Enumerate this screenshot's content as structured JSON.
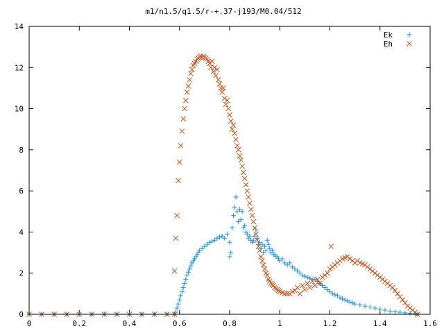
{
  "chart_data": {
    "type": "scatter",
    "title": "m1/n1.5/q1.5/r-+.37-j193/M0.04/512",
    "xlabel": "",
    "ylabel": "",
    "xlim": [
      0,
      1.6
    ],
    "ylim": [
      0,
      14
    ],
    "grid": false,
    "legend_position": "top-right",
    "x_ticks": [
      0,
      0.2,
      0.4,
      0.6,
      0.8,
      1.0,
      1.2,
      1.4,
      1.6
    ],
    "x_tick_labels": [
      "0",
      "0.2",
      "0.4",
      "0.6",
      "0.8",
      "1",
      "1.2",
      "1.4",
      "1.6"
    ],
    "y_ticks": [
      0,
      2,
      4,
      6,
      8,
      10,
      12,
      14
    ],
    "y_tick_labels": [
      "0",
      "2",
      "4",
      "6",
      "8",
      "10",
      "12",
      "14"
    ],
    "series": [
      {
        "name": "Ek",
        "marker": "plus",
        "color": "#1f8fd8",
        "points": [
          [
            0.0,
            0
          ],
          [
            0.05,
            0
          ],
          [
            0.1,
            0
          ],
          [
            0.15,
            0
          ],
          [
            0.2,
            0
          ],
          [
            0.25,
            0
          ],
          [
            0.3,
            0
          ],
          [
            0.35,
            0
          ],
          [
            0.4,
            0
          ],
          [
            0.45,
            0
          ],
          [
            0.5,
            0
          ],
          [
            0.55,
            0
          ],
          [
            0.58,
            0
          ],
          [
            0.585,
            0.1
          ],
          [
            0.59,
            0.3
          ],
          [
            0.595,
            0.5
          ],
          [
            0.6,
            0.7
          ],
          [
            0.605,
            0.9
          ],
          [
            0.61,
            1.1
          ],
          [
            0.615,
            1.3
          ],
          [
            0.62,
            1.5
          ],
          [
            0.625,
            1.7
          ],
          [
            0.63,
            1.9
          ],
          [
            0.635,
            2.05
          ],
          [
            0.64,
            2.2
          ],
          [
            0.645,
            2.35
          ],
          [
            0.65,
            2.5
          ],
          [
            0.655,
            2.6
          ],
          [
            0.66,
            2.7
          ],
          [
            0.665,
            2.8
          ],
          [
            0.67,
            2.9
          ],
          [
            0.675,
            3.0
          ],
          [
            0.68,
            3.1
          ],
          [
            0.69,
            3.2
          ],
          [
            0.7,
            3.3
          ],
          [
            0.71,
            3.4
          ],
          [
            0.72,
            3.5
          ],
          [
            0.73,
            3.55
          ],
          [
            0.74,
            3.6
          ],
          [
            0.75,
            3.7
          ],
          [
            0.76,
            3.75
          ],
          [
            0.77,
            3.8
          ],
          [
            0.78,
            3.7
          ],
          [
            0.79,
            3.9
          ],
          [
            0.8,
            3.5
          ],
          [
            0.8,
            2.8
          ],
          [
            0.805,
            3.0
          ],
          [
            0.81,
            4.2
          ],
          [
            0.815,
            4.8
          ],
          [
            0.82,
            5.2
          ],
          [
            0.825,
            5.7
          ],
          [
            0.83,
            5.0
          ],
          [
            0.835,
            4.5
          ],
          [
            0.84,
            5.1
          ],
          [
            0.845,
            4.6
          ],
          [
            0.85,
            5.0
          ],
          [
            0.855,
            4.2
          ],
          [
            0.86,
            4.3
          ],
          [
            0.865,
            4.0
          ],
          [
            0.87,
            3.9
          ],
          [
            0.875,
            3.7
          ],
          [
            0.88,
            3.8
          ],
          [
            0.885,
            3.6
          ],
          [
            0.89,
            3.5
          ],
          [
            0.895,
            3.6
          ],
          [
            0.9,
            3.8
          ],
          [
            0.905,
            4.1
          ],
          [
            0.91,
            3.7
          ],
          [
            0.915,
            3.4
          ],
          [
            0.92,
            3.5
          ],
          [
            0.925,
            3.2
          ],
          [
            0.93,
            3.4
          ],
          [
            0.935,
            3.0
          ],
          [
            0.94,
            3.3
          ],
          [
            0.945,
            3.1
          ],
          [
            0.95,
            3.6
          ],
          [
            0.955,
            3.4
          ],
          [
            0.96,
            3.2
          ],
          [
            0.965,
            3.0
          ],
          [
            0.97,
            3.1
          ],
          [
            0.975,
            2.9
          ],
          [
            0.98,
            2.9
          ],
          [
            0.985,
            2.8
          ],
          [
            0.99,
            2.8
          ],
          [
            0.995,
            2.7
          ],
          [
            1.0,
            2.6
          ],
          [
            1.01,
            2.7
          ],
          [
            1.02,
            2.5
          ],
          [
            1.03,
            2.4
          ],
          [
            1.04,
            2.5
          ],
          [
            1.05,
            2.3
          ],
          [
            1.06,
            2.2
          ],
          [
            1.07,
            2.1
          ],
          [
            1.08,
            2.0
          ],
          [
            1.09,
            1.9
          ],
          [
            1.1,
            1.85
          ],
          [
            1.11,
            1.8
          ],
          [
            1.12,
            1.75
          ],
          [
            1.13,
            1.7
          ],
          [
            1.14,
            1.7
          ],
          [
            1.15,
            1.6
          ],
          [
            1.16,
            1.5
          ],
          [
            1.17,
            1.4
          ],
          [
            1.18,
            1.3
          ],
          [
            1.19,
            1.2
          ],
          [
            1.2,
            1.1
          ],
          [
            1.21,
            1.0
          ],
          [
            1.22,
            0.95
          ],
          [
            1.23,
            0.9
          ],
          [
            1.24,
            0.8
          ],
          [
            1.25,
            0.75
          ],
          [
            1.26,
            0.7
          ],
          [
            1.27,
            0.65
          ],
          [
            1.28,
            0.6
          ],
          [
            1.29,
            0.55
          ],
          [
            1.3,
            0.5
          ],
          [
            1.32,
            0.45
          ],
          [
            1.34,
            0.4
          ],
          [
            1.36,
            0.35
          ],
          [
            1.38,
            0.3
          ],
          [
            1.4,
            0.25
          ],
          [
            1.42,
            0.2
          ],
          [
            1.44,
            0.15
          ],
          [
            1.46,
            0.12
          ],
          [
            1.48,
            0.1
          ],
          [
            1.5,
            0.07
          ],
          [
            1.52,
            0.05
          ],
          [
            1.54,
            0.02
          ],
          [
            1.55,
            0
          ]
        ]
      },
      {
        "name": "Eh",
        "marker": "cross",
        "color": "#c0541f",
        "points": [
          [
            0.0,
            0
          ],
          [
            0.05,
            0
          ],
          [
            0.1,
            0
          ],
          [
            0.15,
            0
          ],
          [
            0.2,
            0
          ],
          [
            0.25,
            0
          ],
          [
            0.3,
            0
          ],
          [
            0.35,
            0
          ],
          [
            0.4,
            0
          ],
          [
            0.45,
            0
          ],
          [
            0.5,
            0
          ],
          [
            0.55,
            0
          ],
          [
            0.58,
            0
          ],
          [
            0.58,
            2.1
          ],
          [
            0.585,
            3.7
          ],
          [
            0.59,
            4.8
          ],
          [
            0.595,
            6.5
          ],
          [
            0.6,
            7.4
          ],
          [
            0.605,
            8.2
          ],
          [
            0.61,
            8.9
          ],
          [
            0.615,
            9.5
          ],
          [
            0.62,
            10.0
          ],
          [
            0.625,
            10.4
          ],
          [
            0.63,
            10.8
          ],
          [
            0.635,
            11.1
          ],
          [
            0.64,
            11.4
          ],
          [
            0.645,
            11.7
          ],
          [
            0.65,
            11.9
          ],
          [
            0.655,
            12.1
          ],
          [
            0.66,
            12.2
          ],
          [
            0.665,
            12.3
          ],
          [
            0.67,
            12.4
          ],
          [
            0.675,
            12.45
          ],
          [
            0.68,
            12.5
          ],
          [
            0.685,
            12.55
          ],
          [
            0.69,
            12.5
          ],
          [
            0.695,
            12.55
          ],
          [
            0.7,
            12.5
          ],
          [
            0.705,
            12.45
          ],
          [
            0.71,
            12.4
          ],
          [
            0.715,
            12.3
          ],
          [
            0.72,
            12.2
          ],
          [
            0.725,
            12.0
          ],
          [
            0.73,
            12.3
          ],
          [
            0.735,
            11.8
          ],
          [
            0.74,
            12.0
          ],
          [
            0.745,
            11.6
          ],
          [
            0.75,
            11.9
          ],
          [
            0.755,
            11.4
          ],
          [
            0.76,
            11.2
          ],
          [
            0.765,
            11.0
          ],
          [
            0.77,
            10.8
          ],
          [
            0.775,
            11.0
          ],
          [
            0.78,
            10.5
          ],
          [
            0.785,
            10.2
          ],
          [
            0.79,
            10.4
          ],
          [
            0.795,
            10.0
          ],
          [
            0.8,
            9.7
          ],
          [
            0.805,
            9.4
          ],
          [
            0.81,
            9.0
          ],
          [
            0.815,
            9.2
          ],
          [
            0.82,
            8.8
          ],
          [
            0.825,
            8.5
          ],
          [
            0.83,
            8.2
          ],
          [
            0.835,
            8.0
          ],
          [
            0.84,
            7.7
          ],
          [
            0.845,
            7.5
          ],
          [
            0.85,
            7.2
          ],
          [
            0.855,
            6.9
          ],
          [
            0.86,
            6.6
          ],
          [
            0.865,
            6.3
          ],
          [
            0.87,
            6.0
          ],
          [
            0.875,
            5.7
          ],
          [
            0.88,
            5.4
          ],
          [
            0.885,
            5.1
          ],
          [
            0.89,
            4.8
          ],
          [
            0.895,
            4.5
          ],
          [
            0.9,
            4.2
          ],
          [
            0.905,
            3.9
          ],
          [
            0.91,
            3.6
          ],
          [
            0.915,
            3.3
          ],
          [
            0.92,
            3.1
          ],
          [
            0.925,
            2.8
          ],
          [
            0.93,
            2.6
          ],
          [
            0.935,
            2.4
          ],
          [
            0.94,
            2.2
          ],
          [
            0.945,
            2.0
          ],
          [
            0.95,
            1.9
          ],
          [
            0.955,
            1.7
          ],
          [
            0.96,
            1.6
          ],
          [
            0.965,
            1.5
          ],
          [
            0.97,
            1.45
          ],
          [
            0.975,
            1.4
          ],
          [
            0.98,
            1.3
          ],
          [
            0.985,
            1.25
          ],
          [
            0.99,
            1.2
          ],
          [
            0.995,
            1.15
          ],
          [
            1.0,
            1.1
          ],
          [
            1.01,
            1.05
          ],
          [
            1.02,
            1.0
          ],
          [
            1.03,
            1.0
          ],
          [
            1.04,
            1.0
          ],
          [
            1.05,
            1.1
          ],
          [
            1.06,
            1.15
          ],
          [
            1.07,
            1.3
          ],
          [
            1.08,
            1.0
          ],
          [
            1.09,
            1.4
          ],
          [
            1.1,
            1.2
          ],
          [
            1.11,
            1.5
          ],
          [
            1.12,
            1.3
          ],
          [
            1.13,
            1.6
          ],
          [
            1.14,
            1.4
          ],
          [
            1.15,
            1.7
          ],
          [
            1.16,
            1.5
          ],
          [
            1.17,
            1.8
          ],
          [
            1.18,
            1.9
          ],
          [
            1.19,
            2.0
          ],
          [
            1.2,
            2.2
          ],
          [
            1.205,
            3.3
          ],
          [
            1.21,
            2.3
          ],
          [
            1.22,
            2.4
          ],
          [
            1.23,
            2.5
          ],
          [
            1.24,
            2.6
          ],
          [
            1.25,
            2.7
          ],
          [
            1.26,
            2.75
          ],
          [
            1.27,
            2.8
          ],
          [
            1.28,
            2.7
          ],
          [
            1.29,
            2.6
          ],
          [
            1.3,
            2.5
          ],
          [
            1.31,
            2.6
          ],
          [
            1.32,
            2.5
          ],
          [
            1.33,
            2.45
          ],
          [
            1.34,
            2.4
          ],
          [
            1.35,
            2.3
          ],
          [
            1.36,
            2.2
          ],
          [
            1.37,
            2.1
          ],
          [
            1.38,
            2.0
          ],
          [
            1.39,
            1.9
          ],
          [
            1.4,
            1.8
          ],
          [
            1.41,
            1.7
          ],
          [
            1.42,
            1.6
          ],
          [
            1.43,
            1.5
          ],
          [
            1.44,
            1.4
          ],
          [
            1.45,
            1.3
          ],
          [
            1.46,
            1.15
          ],
          [
            1.47,
            1.0
          ],
          [
            1.48,
            0.85
          ],
          [
            1.49,
            0.7
          ],
          [
            1.5,
            0.55
          ],
          [
            1.51,
            0.4
          ],
          [
            1.52,
            0.3
          ],
          [
            1.53,
            0.2
          ],
          [
            1.54,
            0.1
          ],
          [
            1.55,
            0
          ]
        ]
      }
    ]
  }
}
